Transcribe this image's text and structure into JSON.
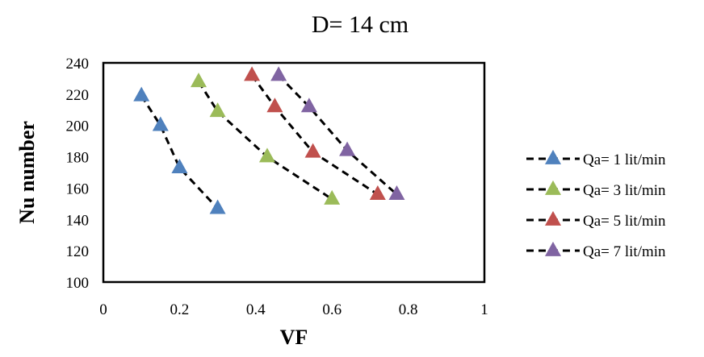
{
  "chart_data": {
    "type": "scatter",
    "title": "D= 14 cm",
    "xlabel": "VF",
    "ylabel": "Nu number",
    "xlim": [
      0,
      1
    ],
    "ylim": [
      100,
      240
    ],
    "x_ticks": [
      "0",
      "0.2",
      "0.4",
      "0.6",
      "0.8",
      "1"
    ],
    "y_ticks": [
      "100",
      "120",
      "140",
      "160",
      "180",
      "200",
      "220",
      "240"
    ],
    "grid": false,
    "legend_position": "right",
    "marker": "triangle",
    "line_style": "dashed",
    "series": [
      {
        "name": "Qa= 1 lit/min",
        "color": "#4F81BD",
        "points": [
          [
            0.1,
            219
          ],
          [
            0.15,
            200
          ],
          [
            0.2,
            173
          ],
          [
            0.3,
            147
          ]
        ]
      },
      {
        "name": "Qa= 3 lit/min",
        "color": "#9BBB59",
        "points": [
          [
            0.25,
            228
          ],
          [
            0.3,
            209
          ],
          [
            0.43,
            180
          ],
          [
            0.6,
            153
          ]
        ]
      },
      {
        "name": "Qa= 5 lit/min",
        "color": "#C0504D",
        "points": [
          [
            0.39,
            232
          ],
          [
            0.45,
            212
          ],
          [
            0.55,
            183
          ],
          [
            0.72,
            156
          ]
        ]
      },
      {
        "name": "Qa= 7 lit/min",
        "color": "#8064A2",
        "points": [
          [
            0.46,
            232
          ],
          [
            0.54,
            212
          ],
          [
            0.64,
            184
          ],
          [
            0.77,
            156
          ]
        ]
      }
    ]
  }
}
